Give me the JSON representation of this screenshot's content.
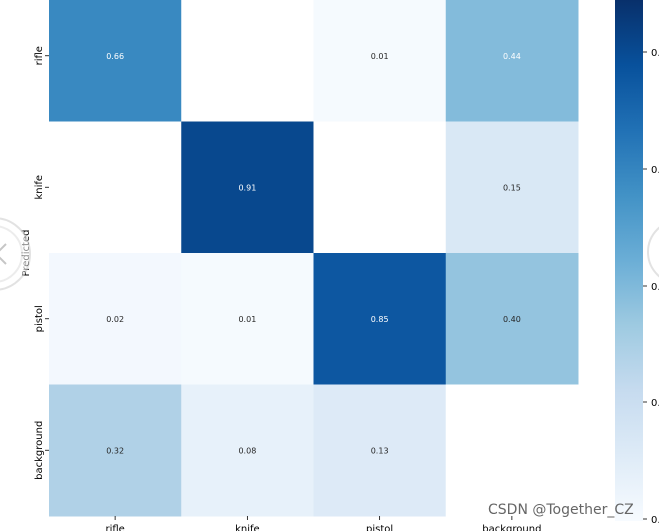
{
  "chart_data": {
    "type": "heatmap",
    "row_labels": [
      "rifle",
      "knife",
      "pistol",
      "background"
    ],
    "col_labels": [
      "rifle",
      "knife",
      "pistol",
      "background"
    ],
    "values": [
      [
        0.66,
        null,
        0.01,
        0.44
      ],
      [
        null,
        0.91,
        null,
        0.15
      ],
      [
        0.02,
        0.01,
        0.85,
        0.4
      ],
      [
        0.32,
        0.08,
        0.13,
        null
      ]
    ],
    "value_labels": [
      [
        "0.66",
        "",
        "0.01",
        "0.44"
      ],
      [
        "",
        "0.91",
        "",
        "0.15"
      ],
      [
        "0.02",
        "0.01",
        "0.85",
        "0.40"
      ],
      [
        "0.32",
        "0.08",
        "0.13",
        ""
      ]
    ],
    "ylabel": "Predicted",
    "colormap": "Blues",
    "vmin": 0.0,
    "vmax": 1.0,
    "colorbar_ticks": [
      "0.",
      "0.",
      "0.",
      "0.",
      "0."
    ]
  },
  "watermark": "CSDN @Together_CZ"
}
